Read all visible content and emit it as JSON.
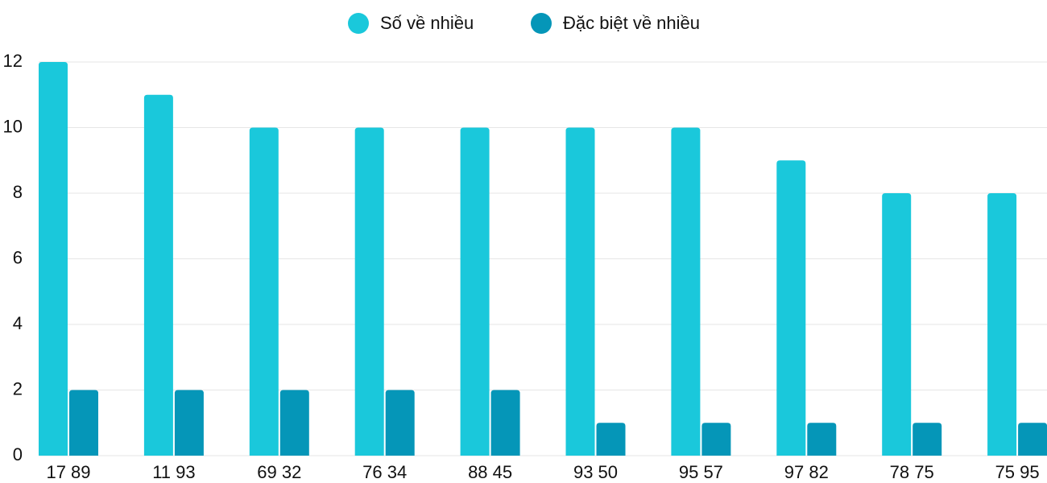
{
  "chart_data": {
    "type": "bar",
    "categories": [
      "17 89",
      "11 93",
      "69 32",
      "76 34",
      "88 45",
      "93 50",
      "95 57",
      "97 82",
      "78 75",
      "75 95"
    ],
    "series": [
      {
        "name": "Số về nhiều",
        "color": "#1ac8db",
        "values": [
          12,
          11,
          10,
          10,
          10,
          10,
          10,
          9,
          8,
          8
        ]
      },
      {
        "name": "Đặc biệt về nhiều",
        "color": "#0596b8",
        "values": [
          2,
          2,
          2,
          2,
          2,
          1,
          1,
          1,
          1,
          1
        ]
      }
    ],
    "ylim": [
      0,
      12
    ],
    "yticks": [
      0,
      2,
      4,
      6,
      8,
      10,
      12
    ],
    "grid": true,
    "legend": "top"
  }
}
